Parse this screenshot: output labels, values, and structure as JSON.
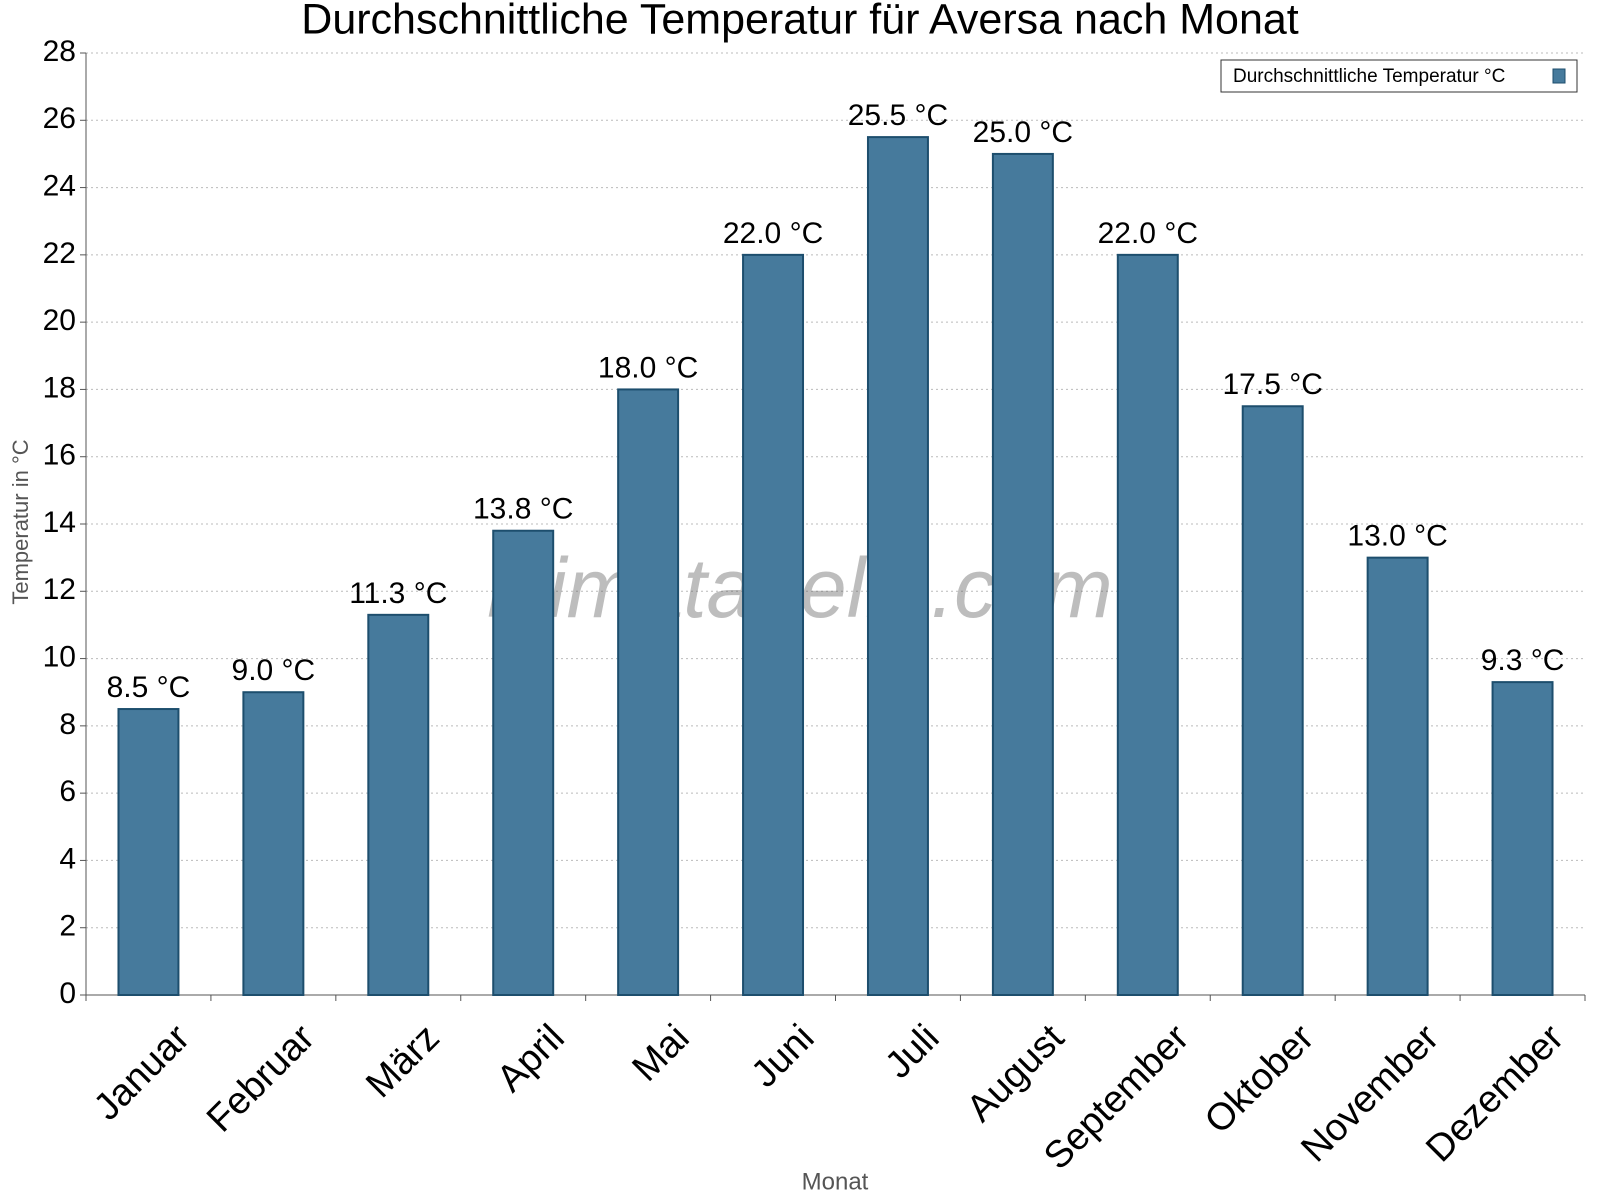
{
  "chart_data": {
    "type": "bar",
    "title": "Durchschnittliche Temperatur für Aversa nach Monat",
    "x_label": "Monat",
    "y_label": "Temperatur in °C",
    "watermark": "klimatabelle.com",
    "categories": [
      "Januar",
      "Februar",
      "März",
      "April",
      "Mai",
      "Juni",
      "Juli",
      "August",
      "September",
      "Oktober",
      "November",
      "Dezember"
    ],
    "series": [
      {
        "name": "Durchschnittliche Temperatur °C",
        "color": "#467a9c",
        "values": [
          8.5,
          9.0,
          11.3,
          13.8,
          18.0,
          22.0,
          25.5,
          25.0,
          22.0,
          17.5,
          13.0,
          9.3
        ],
        "value_labels": [
          "8.5 °C",
          "9.0 °C",
          "11.3 °C",
          "13.8 °C",
          "18.0 °C",
          "22.0 °C",
          "25.5 °C",
          "25.0 °C",
          "22.0 °C",
          "17.5 °C",
          "13.0 °C",
          "9.3 °C"
        ]
      }
    ],
    "ylim": [
      0,
      28
    ],
    "yticks": [
      0,
      2,
      4,
      6,
      8,
      10,
      12,
      14,
      16,
      18,
      20,
      22,
      24,
      26,
      28
    ],
    "grid": true,
    "legend": "top-right"
  }
}
